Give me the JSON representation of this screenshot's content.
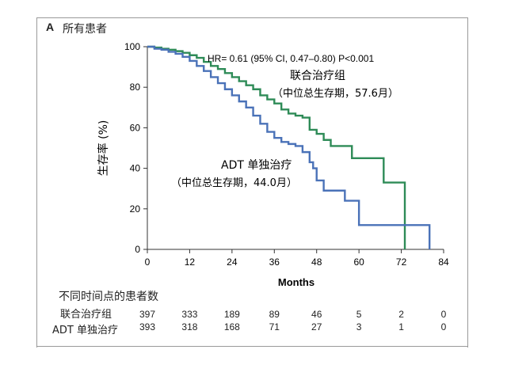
{
  "panel": {
    "letter": "A",
    "title": "所有患者"
  },
  "chart_data": {
    "type": "line",
    "xlabel": "Months",
    "ylabel": "生存率 (%)",
    "xlim": [
      0,
      84
    ],
    "ylim": [
      0,
      100
    ],
    "xticks": [
      0,
      12,
      24,
      36,
      48,
      60,
      72,
      84
    ],
    "yticks": [
      0,
      20,
      40,
      60,
      80,
      100
    ],
    "grid": false,
    "annotations": {
      "hr": "HR= 0.61 (95% CI, 0.47–0.80) P<0.001",
      "combo_name": "联合治疗组",
      "combo_median": "（中位总生存期，57.6月）",
      "adt_name": "ADT 单独治疗",
      "adt_median": "（中位总生存期，44.0月）"
    },
    "series": [
      {
        "name": "联合治疗组",
        "color": "#2e8b57",
        "step": true,
        "points": [
          [
            0,
            100
          ],
          [
            2,
            99.6
          ],
          [
            4,
            99
          ],
          [
            6,
            98.5
          ],
          [
            8,
            97.8
          ],
          [
            10,
            97
          ],
          [
            12,
            95.8
          ],
          [
            14,
            94.5
          ],
          [
            16,
            92.5
          ],
          [
            18,
            90.5
          ],
          [
            20,
            89
          ],
          [
            22,
            87
          ],
          [
            24,
            85
          ],
          [
            26,
            83
          ],
          [
            28,
            81
          ],
          [
            30,
            79
          ],
          [
            32,
            76
          ],
          [
            34,
            74
          ],
          [
            36,
            72
          ],
          [
            38,
            69
          ],
          [
            40,
            67
          ],
          [
            42,
            66
          ],
          [
            44,
            65
          ],
          [
            46,
            59
          ],
          [
            48,
            57
          ],
          [
            50,
            54
          ],
          [
            52,
            51
          ],
          [
            56,
            51
          ],
          [
            58,
            45
          ],
          [
            62,
            45
          ],
          [
            65,
            45
          ],
          [
            67,
            33
          ],
          [
            72,
            33
          ],
          [
            73,
            0
          ]
        ]
      },
      {
        "name": "ADT 单独治疗",
        "color": "#4a72b8",
        "step": true,
        "points": [
          [
            0,
            100
          ],
          [
            2,
            99
          ],
          [
            4,
            98.5
          ],
          [
            6,
            97.5
          ],
          [
            8,
            96.5
          ],
          [
            10,
            95
          ],
          [
            12,
            93
          ],
          [
            14,
            90.5
          ],
          [
            16,
            88
          ],
          [
            18,
            85
          ],
          [
            20,
            82
          ],
          [
            22,
            79
          ],
          [
            24,
            76
          ],
          [
            26,
            73
          ],
          [
            28,
            70
          ],
          [
            30,
            66
          ],
          [
            32,
            62
          ],
          [
            34,
            58
          ],
          [
            36,
            55
          ],
          [
            38,
            53
          ],
          [
            40,
            52
          ],
          [
            42,
            51
          ],
          [
            44,
            48
          ],
          [
            46,
            43
          ],
          [
            47,
            40
          ],
          [
            48,
            34
          ],
          [
            50,
            29
          ],
          [
            52,
            29
          ],
          [
            56,
            24
          ],
          [
            58,
            24
          ],
          [
            60,
            12
          ],
          [
            66,
            12
          ],
          [
            72,
            12
          ],
          [
            74,
            12
          ],
          [
            79,
            12
          ],
          [
            80,
            0
          ]
        ]
      }
    ]
  },
  "risk_table": {
    "title": "不同时间点的患者数",
    "rows": [
      {
        "label": "联合治疗组",
        "values": [
          "397",
          "333",
          "189",
          "89",
          "46",
          "5",
          "2",
          "0"
        ]
      },
      {
        "label": "ADT 单独治疗",
        "values": [
          "393",
          "318",
          "168",
          "71",
          "27",
          "3",
          "1",
          "0"
        ]
      }
    ]
  }
}
